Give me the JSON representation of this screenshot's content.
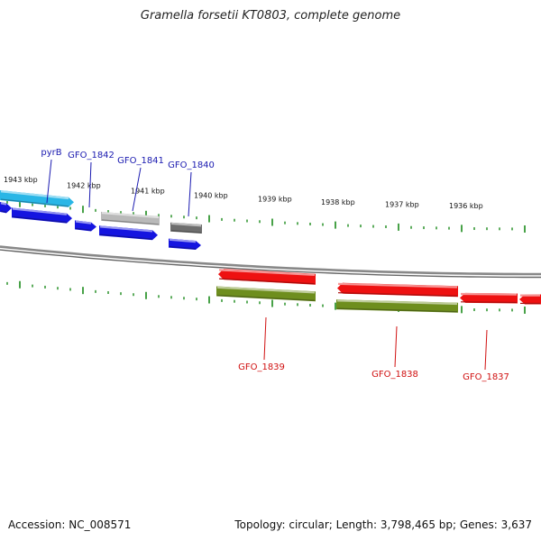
{
  "title": "Gramella forsetii KT0803, complete genome",
  "footer": {
    "accession": "Accession: NC_008571",
    "stats": "Topology: circular; Length: 3,798,465 bp; Genes: 3,637"
  },
  "colors": {
    "backbone": "#888888",
    "ticks": "#1a8a1a",
    "forward_label": "#1a1ab0",
    "reverse_label": "#d01010",
    "cds_forward": "#1515e0",
    "rna": "#29b6e6",
    "gene_grey_light": "#b9b9b9",
    "gene_grey_dark": "#6e6e6e",
    "cds_reverse": "#ee1111",
    "gene_reverse": "#6e8e1e"
  },
  "kbp_labels": [
    "1943 kbp",
    "1942 kbp",
    "1941 kbp",
    "1940 kbp",
    "1939 kbp",
    "1938 kbp",
    "1937 kbp",
    "1936 kbp"
  ],
  "gene_labels": {
    "forward": [
      "pyrB",
      "GFO_1842",
      "GFO_1841",
      "GFO_1840"
    ],
    "reverse": [
      "GFO_1839",
      "GFO_1838",
      "GFO_1837"
    ]
  }
}
